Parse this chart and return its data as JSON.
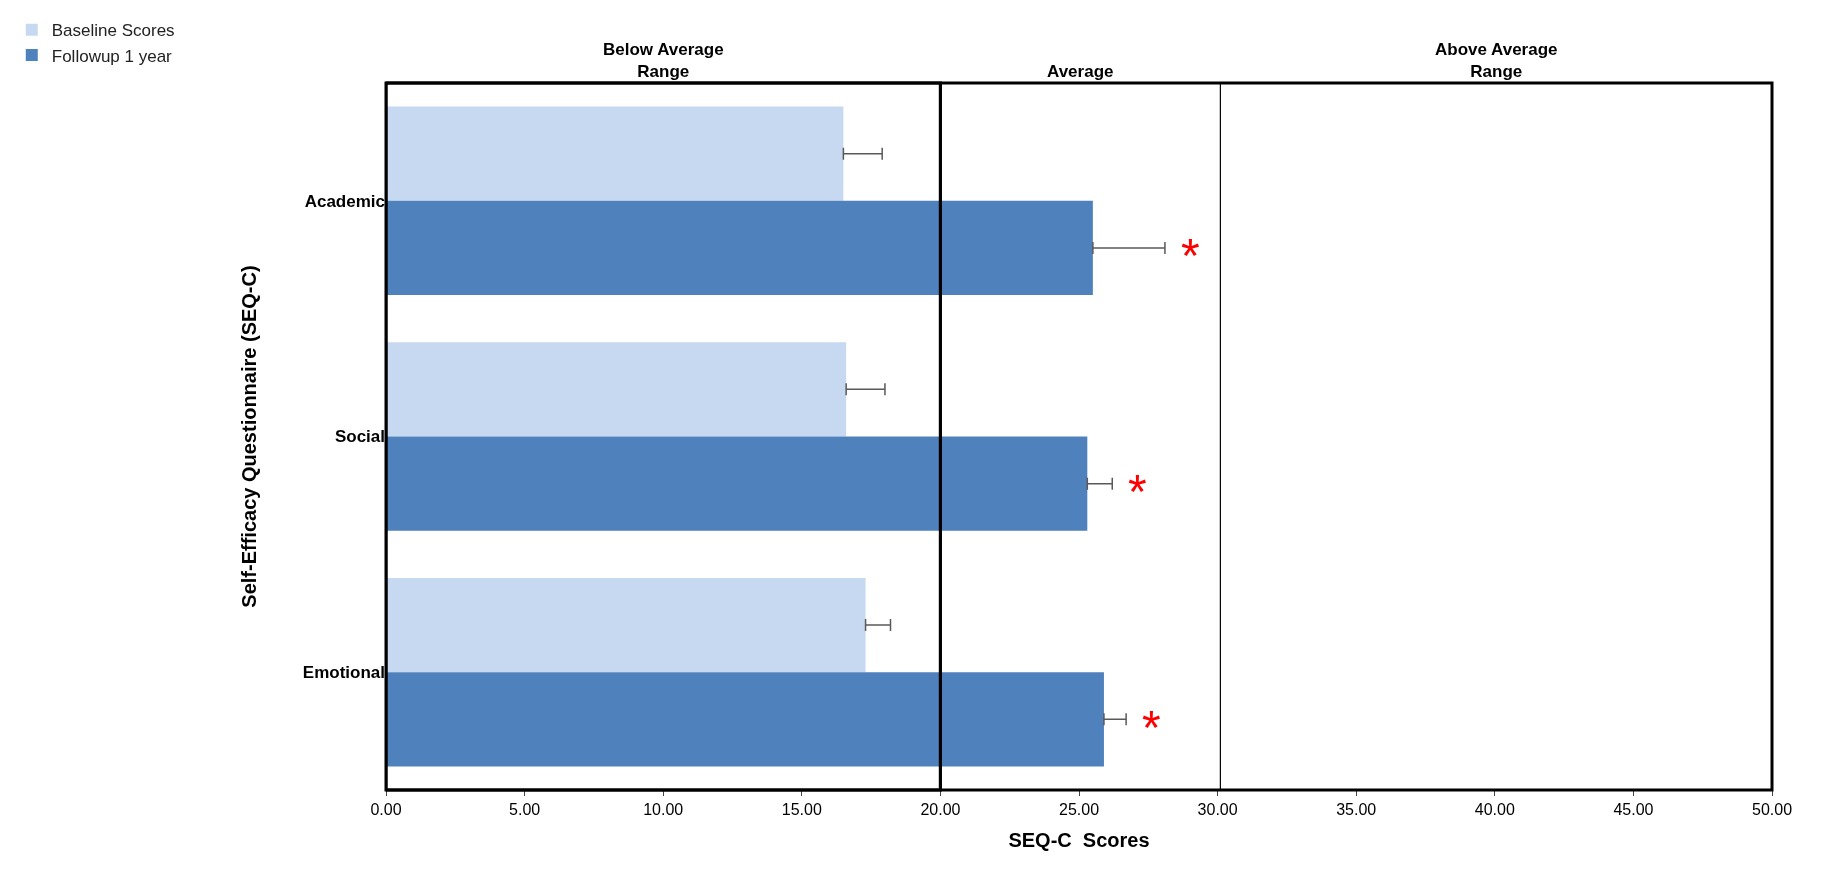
{
  "chart_data": {
    "type": "bar",
    "orientation": "horizontal",
    "xlabel": "SEQ-C  Scores",
    "ylabel": "Self-Efficacy Questionnaire (SEQ-C)",
    "categories": [
      "Academic",
      "Social",
      "Emotional"
    ],
    "series": [
      {
        "name": "Baseline Scores",
        "color": "#c6d9f0",
        "values": [
          16.5,
          16.6,
          17.3
        ],
        "errors": [
          [
            16.5,
            17.9
          ],
          [
            16.6,
            18.0
          ],
          [
            17.3,
            18.2
          ]
        ]
      },
      {
        "name": "Followup 1 year",
        "color": "#4f81bd",
        "values": [
          25.5,
          25.3,
          25.9
        ],
        "errors": [
          [
            25.5,
            28.1
          ],
          [
            25.3,
            26.2
          ],
          [
            25.9,
            26.7
          ]
        ]
      }
    ],
    "xlim": [
      0,
      50
    ],
    "xticks": [
      {
        "value": 0,
        "label": "0.00"
      },
      {
        "value": 5,
        "label": "5.00"
      },
      {
        "value": 10,
        "label": "10.00"
      },
      {
        "value": 15,
        "label": "15.00"
      },
      {
        "value": 20,
        "label": "20.00"
      },
      {
        "value": 25,
        "label": "25.00"
      },
      {
        "value": 30,
        "label": "30.00"
      },
      {
        "value": 35,
        "label": "35.00"
      },
      {
        "value": 40,
        "label": "40.00"
      },
      {
        "value": 45,
        "label": "45.00"
      },
      {
        "value": 50,
        "label": "50.00"
      }
    ],
    "ref_lines": [
      {
        "axis": "x",
        "value": 20,
        "line_style": "solid"
      },
      {
        "axis": "x",
        "value": 30.1,
        "line_style": "solid"
      }
    ],
    "annotations": [
      "Below Average\nRange",
      "Average",
      "Above Average\nRange",
      "*",
      "*",
      "*"
    ],
    "legend": "top left"
  }
}
